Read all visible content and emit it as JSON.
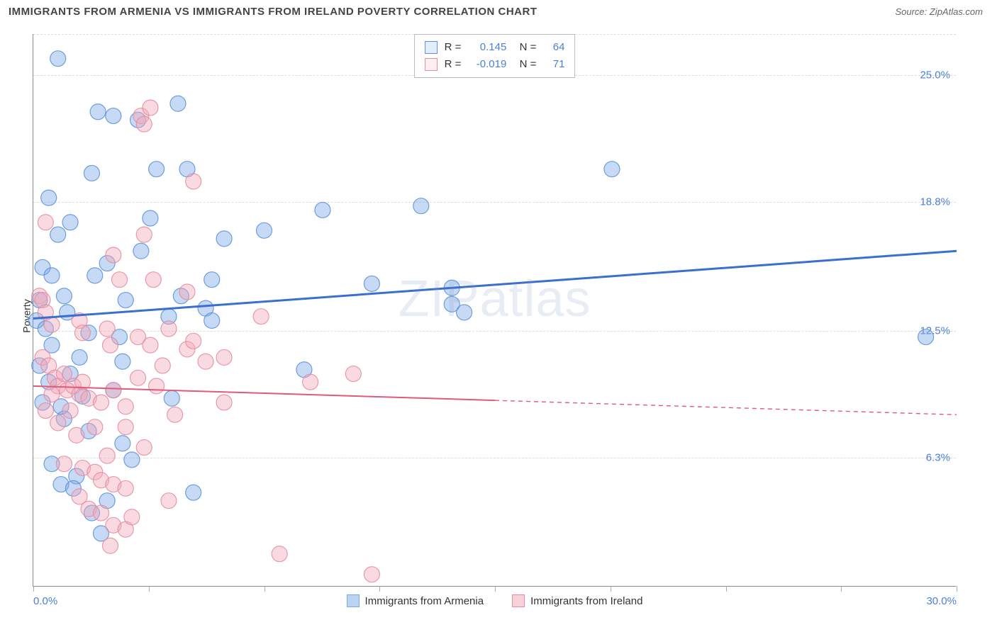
{
  "header": {
    "title": "IMMIGRANTS FROM ARMENIA VS IMMIGRANTS FROM IRELAND POVERTY CORRELATION CHART",
    "source_prefix": "Source: ",
    "source": "ZipAtlas.com"
  },
  "watermark": "ZIPatlas",
  "chart": {
    "type": "scatter",
    "ylabel": "Poverty",
    "xlim": [
      0,
      30
    ],
    "ylim": [
      0,
      27
    ],
    "xticks_minor": [
      0,
      3.75,
      7.5,
      11.25,
      15,
      18.75,
      22.5,
      26.25,
      30
    ],
    "xtick_labels": [
      {
        "x": 0,
        "label": "0.0%"
      },
      {
        "x": 30,
        "label": "30.0%"
      }
    ],
    "ytick_labels": [
      {
        "y": 6.3,
        "label": "6.3%"
      },
      {
        "y": 12.5,
        "label": "12.5%"
      },
      {
        "y": 18.8,
        "label": "18.8%"
      },
      {
        "y": 25.0,
        "label": "25.0%"
      }
    ],
    "gridlines_y": [
      6.3,
      12.5,
      18.8,
      25.0,
      27.0
    ],
    "grid_color": "#dddddd",
    "background_color": "#ffffff",
    "marker_radius": 11,
    "marker_opacity": 0.42,
    "marker_stroke_opacity": 0.85,
    "series": [
      {
        "name": "Immigrants from Armenia",
        "color": "#7aa8e6",
        "stroke": "#5b8fd6",
        "points": [
          [
            0.8,
            25.8
          ],
          [
            2.1,
            23.2
          ],
          [
            2.6,
            23.0
          ],
          [
            3.4,
            22.8
          ],
          [
            4.7,
            23.6
          ],
          [
            1.9,
            20.2
          ],
          [
            4.0,
            20.4
          ],
          [
            5.0,
            20.4
          ],
          [
            0.5,
            19.0
          ],
          [
            3.8,
            18.0
          ],
          [
            1.2,
            17.8
          ],
          [
            7.5,
            17.4
          ],
          [
            9.4,
            18.4
          ],
          [
            12.6,
            18.6
          ],
          [
            18.8,
            20.4
          ],
          [
            0.3,
            15.6
          ],
          [
            0.6,
            15.2
          ],
          [
            2.0,
            15.2
          ],
          [
            3.5,
            16.4
          ],
          [
            5.8,
            15.0
          ],
          [
            0.2,
            14.0
          ],
          [
            1.0,
            14.2
          ],
          [
            3.0,
            14.0
          ],
          [
            4.8,
            14.2
          ],
          [
            5.6,
            13.6
          ],
          [
            5.8,
            13.0
          ],
          [
            11.0,
            14.8
          ],
          [
            13.6,
            13.8
          ],
          [
            14.0,
            13.4
          ],
          [
            13.6,
            14.6
          ],
          [
            0.1,
            13.0
          ],
          [
            0.4,
            12.6
          ],
          [
            0.6,
            11.8
          ],
          [
            1.8,
            12.4
          ],
          [
            1.5,
            11.2
          ],
          [
            2.8,
            12.2
          ],
          [
            2.9,
            11.0
          ],
          [
            0.2,
            10.8
          ],
          [
            0.5,
            10.0
          ],
          [
            1.2,
            10.4
          ],
          [
            1.6,
            9.3
          ],
          [
            0.3,
            9.0
          ],
          [
            4.5,
            9.2
          ],
          [
            8.8,
            10.6
          ],
          [
            29.0,
            12.2
          ],
          [
            1.0,
            8.2
          ],
          [
            1.8,
            7.6
          ],
          [
            2.9,
            7.0
          ],
          [
            3.2,
            6.2
          ],
          [
            0.6,
            6.0
          ],
          [
            1.4,
            5.4
          ],
          [
            0.9,
            5.0
          ],
          [
            1.3,
            4.8
          ],
          [
            2.4,
            4.2
          ],
          [
            5.2,
            4.6
          ],
          [
            1.9,
            3.6
          ],
          [
            2.2,
            2.6
          ],
          [
            2.6,
            9.6
          ],
          [
            6.2,
            17.0
          ],
          [
            0.8,
            17.2
          ],
          [
            2.4,
            15.8
          ],
          [
            4.4,
            13.2
          ],
          [
            1.1,
            13.4
          ],
          [
            0.9,
            8.8
          ]
        ],
        "trend": {
          "y_at_xmin": 13.1,
          "y_at_xmax": 16.4,
          "solid_until_x": 30,
          "line_width": 3,
          "line_color": "#3a6fd0"
        },
        "stat_R": "0.145",
        "stat_N": "64"
      },
      {
        "name": "Immigrants from Ireland",
        "color": "#f2a8b8",
        "stroke": "#e48ba0",
        "points": [
          [
            3.5,
            23.0
          ],
          [
            3.6,
            22.6
          ],
          [
            3.8,
            23.4
          ],
          [
            5.2,
            19.8
          ],
          [
            0.4,
            17.8
          ],
          [
            3.6,
            17.2
          ],
          [
            2.6,
            16.2
          ],
          [
            0.2,
            14.2
          ],
          [
            0.3,
            14.0
          ],
          [
            2.8,
            15.0
          ],
          [
            3.9,
            15.0
          ],
          [
            5.0,
            14.4
          ],
          [
            0.4,
            13.4
          ],
          [
            0.6,
            12.8
          ],
          [
            1.5,
            13.0
          ],
          [
            1.6,
            12.4
          ],
          [
            2.4,
            12.6
          ],
          [
            2.5,
            11.8
          ],
          [
            3.4,
            12.2
          ],
          [
            3.8,
            11.8
          ],
          [
            4.4,
            12.6
          ],
          [
            5.0,
            11.6
          ],
          [
            5.2,
            12.0
          ],
          [
            5.6,
            11.0
          ],
          [
            6.2,
            11.2
          ],
          [
            7.4,
            13.2
          ],
          [
            0.3,
            11.2
          ],
          [
            0.5,
            10.8
          ],
          [
            0.7,
            10.2
          ],
          [
            0.8,
            9.8
          ],
          [
            1.0,
            10.4
          ],
          [
            1.1,
            9.6
          ],
          [
            1.3,
            9.8
          ],
          [
            1.5,
            9.4
          ],
          [
            1.6,
            10.0
          ],
          [
            1.8,
            9.2
          ],
          [
            2.2,
            9.0
          ],
          [
            2.6,
            9.6
          ],
          [
            3.0,
            8.8
          ],
          [
            3.4,
            10.2
          ],
          [
            4.0,
            9.8
          ],
          [
            4.6,
            8.4
          ],
          [
            6.2,
            9.0
          ],
          [
            9.0,
            10.0
          ],
          [
            10.4,
            10.4
          ],
          [
            0.4,
            8.6
          ],
          [
            0.8,
            8.0
          ],
          [
            1.4,
            7.4
          ],
          [
            2.0,
            7.8
          ],
          [
            2.4,
            6.4
          ],
          [
            3.6,
            6.8
          ],
          [
            1.0,
            6.0
          ],
          [
            1.6,
            5.8
          ],
          [
            2.0,
            5.6
          ],
          [
            2.2,
            5.2
          ],
          [
            2.6,
            5.0
          ],
          [
            3.0,
            4.8
          ],
          [
            1.5,
            4.4
          ],
          [
            1.8,
            3.8
          ],
          [
            2.2,
            3.6
          ],
          [
            2.6,
            3.0
          ],
          [
            3.0,
            2.8
          ],
          [
            3.2,
            3.4
          ],
          [
            4.4,
            4.2
          ],
          [
            2.5,
            2.0
          ],
          [
            8.0,
            1.6
          ],
          [
            11.0,
            0.6
          ],
          [
            3.0,
            7.8
          ],
          [
            1.2,
            8.6
          ],
          [
            0.6,
            9.4
          ],
          [
            4.2,
            10.8
          ]
        ],
        "trend": {
          "y_at_xmin": 9.8,
          "y_at_xmax": 8.4,
          "solid_until_x": 15,
          "line_width": 2,
          "line_color": "#e05a7a"
        },
        "stat_R": "-0.019",
        "stat_N": "71"
      }
    ],
    "stats_labels": {
      "R": "R =",
      "N": "N ="
    },
    "bottom_legend": [
      {
        "swatch_fill": "#bcd4f2",
        "swatch_stroke": "#7aa8e6",
        "label": "Immigrants from Armenia"
      },
      {
        "swatch_fill": "#f8d0da",
        "swatch_stroke": "#e48ba0",
        "label": "Immigrants from Ireland"
      }
    ]
  }
}
